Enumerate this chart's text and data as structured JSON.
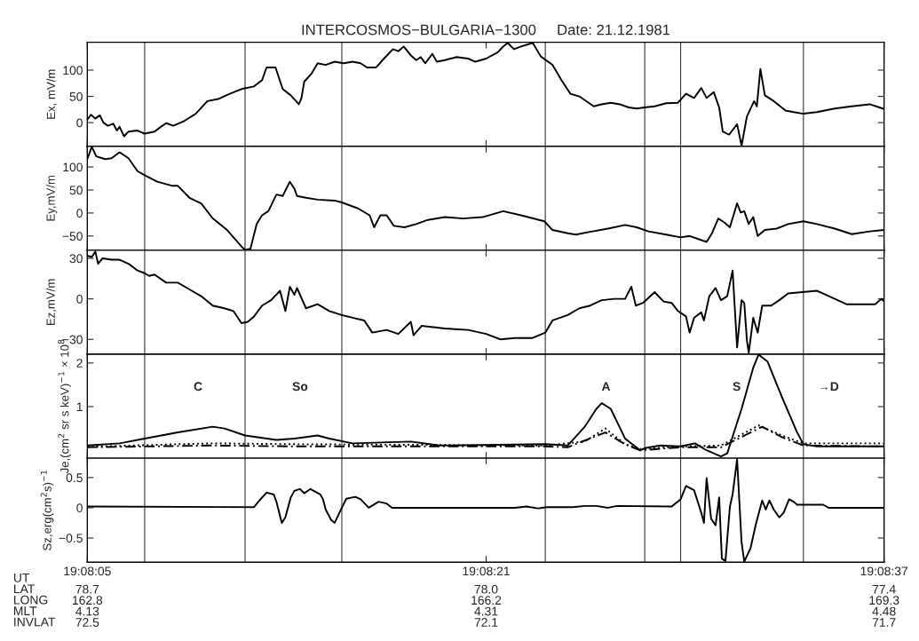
{
  "chart_data": [
    {
      "type": "line",
      "title": "INTERCOSMOS−BULGARIA−1300     Date: 21.12.1981",
      "ylabel": "Ex, mV/m",
      "xlim": [
        19.13472,
        19.14361
      ],
      "xticks": [
        19.13472,
        19.13917,
        19.14361
      ],
      "ylim": [
        -45,
        153
      ],
      "yticks": [
        0,
        50,
        100
      ],
      "tick_labels": "y",
      "ref_lines": [
        {
          "axis": "x",
          "value": 19.13536,
          "color": "#333333"
        },
        {
          "axis": "x",
          "value": 19.13648,
          "color": "#333333"
        },
        {
          "axis": "x",
          "value": 19.13756,
          "color": "#333333"
        },
        {
          "axis": "x",
          "value": 19.13983,
          "color": "#333333"
        },
        {
          "axis": "x",
          "value": 19.14094,
          "color": "#333333"
        },
        {
          "axis": "x",
          "value": 19.14134,
          "color": "#333333"
        },
        {
          "axis": "x",
          "value": 19.14271,
          "color": "#333333"
        }
      ],
      "series": [
        {
          "color": "#000000",
          "x": [
            19.13472,
            19.13476,
            19.13481,
            19.13486,
            19.1349,
            19.13495,
            19.13501,
            19.13505,
            19.13508,
            19.13513,
            19.13518,
            19.13528,
            19.13536,
            19.13547,
            19.13554,
            19.1356,
            19.13568,
            19.13579,
            19.13593,
            19.13606,
            19.13618,
            19.13631,
            19.13644,
            19.13658,
            19.13667,
            19.13672,
            19.13682,
            19.1369,
            19.13699,
            19.13708,
            19.13711,
            19.13714,
            19.13722,
            19.13729,
            19.13738,
            19.13748,
            19.13758,
            19.13768,
            19.13777,
            19.13784,
            19.13794,
            19.13803,
            19.13813,
            19.13819,
            19.13825,
            19.13833,
            19.13839,
            19.13844,
            19.13849,
            19.13857,
            19.13862,
            19.13871,
            19.13884,
            19.13897,
            19.13905,
            19.13917,
            19.1393,
            19.13936,
            19.13941,
            19.13948,
            19.13956,
            19.13969,
            19.13978,
            19.13991,
            19.14001,
            19.14011,
            19.14021,
            19.14027,
            19.14037,
            19.14046,
            19.14056,
            19.14066,
            19.14076,
            19.14085,
            19.14094,
            19.14105,
            19.14118,
            19.14131,
            19.1414,
            19.14149,
            19.14157,
            19.14163,
            19.14171,
            19.14177,
            19.14181,
            19.14188,
            19.14197,
            19.14202,
            19.14208,
            19.14216,
            19.14219,
            19.14223,
            19.14228,
            19.14238,
            19.14251,
            19.1426,
            19.14271,
            19.14286,
            19.14306,
            19.14325,
            19.14345,
            19.14361
          ],
          "values": [
            6,
            15,
            8,
            14,
            0,
            -6,
            -2,
            -15,
            -8,
            -26,
            -17,
            -15,
            -21,
            -17,
            -8,
            -1,
            -6,
            2,
            17,
            41,
            45,
            55,
            64,
            69,
            81,
            105,
            105,
            64,
            52,
            35,
            47,
            78,
            93,
            113,
            110,
            116,
            113,
            116,
            113,
            105,
            105,
            122,
            140,
            136,
            145,
            128,
            119,
            125,
            113,
            131,
            116,
            119,
            125,
            122,
            116,
            122,
            134,
            145,
            152,
            140,
            145,
            152,
            126,
            110,
            81,
            55,
            50,
            43,
            31,
            35,
            38,
            35,
            29,
            27,
            29,
            31,
            37,
            38,
            55,
            47,
            66,
            47,
            58,
            29,
            -17,
            -23,
            -3,
            -44,
            12,
            41,
            31,
            102,
            52,
            41,
            23,
            20,
            17,
            20,
            27,
            31,
            35,
            26
          ]
        }
      ]
    },
    {
      "type": "line",
      "ylabel": "Ey,mV/m",
      "xlim": [
        19.13472,
        19.14361
      ],
      "xticks": [
        19.13472,
        19.13917,
        19.14361
      ],
      "ylim": [
        -81,
        145
      ],
      "yticks": [
        {
          "value": -50,
          "label": "−50"
        },
        0,
        50,
        100
      ],
      "tick_labels": "y",
      "ref_lines": [
        {
          "axis": "x",
          "value": 19.13536,
          "color": "#333333"
        },
        {
          "axis": "x",
          "value": 19.13648,
          "color": "#333333"
        },
        {
          "axis": "x",
          "value": 19.13756,
          "color": "#333333"
        },
        {
          "axis": "x",
          "value": 19.13983,
          "color": "#333333"
        },
        {
          "axis": "x",
          "value": 19.14094,
          "color": "#333333"
        },
        {
          "axis": "x",
          "value": 19.14134,
          "color": "#333333"
        },
        {
          "axis": "x",
          "value": 19.14271,
          "color": "#333333"
        }
      ],
      "series": [
        {
          "color": "#000000",
          "x": [
            19.13472,
            19.13477,
            19.13482,
            19.13492,
            19.13499,
            19.13508,
            19.13518,
            19.13528,
            19.13536,
            19.1355,
            19.13567,
            19.13573,
            19.13586,
            19.13599,
            19.13612,
            19.13628,
            19.13644,
            19.13648,
            19.13654,
            19.13661,
            19.13667,
            19.13674,
            19.13683,
            19.1369,
            19.13698,
            19.13703,
            19.13706,
            19.13716,
            19.13729,
            19.13748,
            19.13756,
            19.13774,
            19.13787,
            19.13792,
            19.13799,
            19.13806,
            19.13814,
            19.13826,
            19.13839,
            19.13852,
            19.13871,
            19.13891,
            19.13913,
            19.13936,
            19.13956,
            19.13982,
            19.13991,
            19.14008,
            19.14017,
            19.14033,
            19.14053,
            19.14072,
            19.14085,
            19.14098,
            19.14118,
            19.14134,
            19.14144,
            19.14163,
            19.14169,
            19.14176,
            19.14183,
            19.14189,
            19.14197,
            19.14201,
            19.14205,
            19.1421,
            19.14215,
            19.1422,
            19.14228,
            19.14241,
            19.14254,
            19.14271,
            19.14286,
            19.14306,
            19.14325,
            19.14345,
            19.14361
          ],
          "values": [
            117,
            144,
            123,
            117,
            119,
            132,
            119,
            91,
            82,
            68,
            59,
            59,
            33,
            21,
            -12,
            -37,
            -73,
            -80,
            -78,
            -24,
            -5,
            4,
            40,
            37,
            68,
            53,
            37,
            33,
            29,
            27,
            23,
            10,
            -5,
            -31,
            -5,
            -5,
            -28,
            -31,
            -24,
            -15,
            -9,
            -12,
            -9,
            4,
            -5,
            -18,
            -37,
            -44,
            -47,
            -41,
            -34,
            -26,
            -31,
            -40,
            -47,
            -53,
            -50,
            -63,
            -44,
            -12,
            -21,
            -31,
            21,
            1,
            4,
            -24,
            -9,
            -50,
            -37,
            -34,
            -24,
            -18,
            -24,
            -34,
            -46,
            -40,
            -37
          ]
        }
      ]
    },
    {
      "type": "line",
      "ylabel": "Ez,mV/m",
      "xlim": [
        19.13472,
        19.14361
      ],
      "xticks": [
        19.13472,
        19.13917,
        19.14361
      ],
      "ylim": [
        -41,
        36
      ],
      "yticks": [
        {
          "value": -30,
          "label": "−30"
        },
        0,
        30
      ],
      "tick_labels": "y",
      "ref_lines": [
        {
          "axis": "x",
          "value": 19.13536,
          "color": "#333333"
        },
        {
          "axis": "x",
          "value": 19.13648,
          "color": "#333333"
        },
        {
          "axis": "x",
          "value": 19.13756,
          "color": "#333333"
        },
        {
          "axis": "x",
          "value": 19.13983,
          "color": "#333333"
        },
        {
          "axis": "x",
          "value": 19.14094,
          "color": "#333333"
        },
        {
          "axis": "x",
          "value": 19.14134,
          "color": "#333333"
        },
        {
          "axis": "x",
          "value": 19.14271,
          "color": "#333333"
        }
      ],
      "series": [
        {
          "color": "#000000",
          "x": [
            19.13472,
            19.13477,
            19.13481,
            19.13484,
            19.13489,
            19.13499,
            19.13508,
            19.13518,
            19.13528,
            19.13536,
            19.13541,
            19.13547,
            19.1356,
            19.13573,
            19.13586,
            19.13599,
            19.13612,
            19.13625,
            19.13635,
            19.13644,
            19.13651,
            19.13658,
            19.13667,
            19.13677,
            19.13687,
            19.13693,
            19.13698,
            19.13703,
            19.13706,
            19.13716,
            19.13729,
            19.13742,
            19.13756,
            19.13768,
            19.13781,
            19.1379,
            19.13806,
            19.13819,
            19.13833,
            19.13836,
            19.13845,
            19.13871,
            19.13897,
            19.13917,
            19.13933,
            19.13949,
            19.13969,
            19.13983,
            19.13991,
            19.14008,
            19.14021,
            19.14033,
            19.14046,
            19.1406,
            19.14072,
            19.14079,
            19.14084,
            19.14092,
            19.14105,
            19.14115,
            19.14124,
            19.14131,
            19.1414,
            19.14144,
            19.14149,
            19.14157,
            19.1416,
            19.14166,
            19.14173,
            19.14179,
            19.14186,
            19.14192,
            19.14197,
            19.14202,
            19.14205,
            19.14208,
            19.1421,
            19.14215,
            19.1422,
            19.14225,
            19.14235,
            19.14244,
            19.14254,
            19.14286,
            19.14293,
            19.14319,
            19.14351,
            19.14358,
            19.14361
          ],
          "values": [
            32,
            31,
            35,
            26,
            30,
            29,
            29,
            26,
            21,
            19,
            17,
            18,
            12,
            12,
            7,
            2,
            -5,
            -7,
            -9,
            -18,
            -17,
            -13,
            -5,
            -1,
            6,
            -9,
            9,
            3,
            8,
            -7,
            -4,
            -9,
            -12,
            -14,
            -16,
            -25,
            -23,
            -26,
            -17,
            -27,
            -20,
            -22,
            -23,
            -26,
            -30,
            -29,
            -29,
            -25,
            -16,
            -12,
            -7,
            -5,
            -1,
            0,
            0,
            9,
            -5,
            -3,
            5,
            -2,
            -3,
            -9,
            -13,
            -25,
            -14,
            -10,
            -16,
            2,
            8,
            -1,
            2,
            21,
            -36,
            -1,
            -3,
            -31,
            -40,
            -14,
            -25,
            -5,
            -5,
            -1,
            4,
            6,
            4,
            -4,
            -4,
            0,
            -2
          ]
        }
      ]
    },
    {
      "type": "line",
      "ylabel": "Je,(cm$^{2}$ sr s keV)$^{−1}$ × 10$^{8}$",
      "xlim": [
        19.13472,
        19.14361
      ],
      "xticks": [
        19.13472,
        19.13917,
        19.14361
      ],
      "ylim": [
        -0.18,
        2.2
      ],
      "yticks": [
        1,
        2
      ],
      "tick_labels": "y",
      "ref_lines": [
        {
          "axis": "x",
          "value": 19.13536,
          "color": "#333333"
        },
        {
          "axis": "x",
          "value": 19.13648,
          "color": "#333333"
        },
        {
          "axis": "x",
          "value": 19.13756,
          "color": "#333333"
        },
        {
          "axis": "x",
          "value": 19.13983,
          "color": "#333333"
        },
        {
          "axis": "x",
          "value": 19.14094,
          "color": "#333333"
        },
        {
          "axis": "x",
          "value": 19.14134,
          "color": "#333333"
        },
        {
          "axis": "x",
          "value": 19.14271,
          "color": "#333333"
        }
      ],
      "annotations": [
        "C",
        "So",
        "A",
        "S",
        "→D"
      ],
      "series": [
        {
          "color": "#000000",
          "line_style": "solid",
          "x": [
            19.13472,
            19.13508,
            19.13536,
            19.13573,
            19.13612,
            19.13625,
            19.13648,
            19.13683,
            19.13703,
            19.13729,
            19.13742,
            19.13768,
            19.13833,
            19.13865,
            19.13983,
            19.14008,
            19.14027,
            19.1404,
            19.14046,
            19.14056,
            19.14072,
            19.14089,
            19.14094,
            19.14111,
            19.14134,
            19.1415,
            19.14163,
            19.14179,
            19.14186,
            19.14202,
            19.14215,
            19.14221,
            19.14231,
            19.14247,
            19.14264,
            19.14271,
            19.14286,
            19.14361
          ],
          "values": [
            0.11,
            0.16,
            0.27,
            0.41,
            0.54,
            0.5,
            0.34,
            0.24,
            0.27,
            0.34,
            0.27,
            0.16,
            0.2,
            0.11,
            0.14,
            0.11,
            0.54,
            0.95,
            1.08,
            0.95,
            0.27,
            0,
            0.05,
            0.11,
            0.09,
            0.16,
            0,
            -0.14,
            -0.07,
            0.95,
            1.89,
            2.19,
            2.03,
            1.22,
            0.41,
            0.14,
            0.09,
            0.09
          ]
        },
        {
          "color": "#000000",
          "line_style": "dotted",
          "x": [
            19.13472,
            19.13573,
            19.13612,
            19.13703,
            19.13983,
            19.14027,
            19.1405,
            19.14072,
            19.14089,
            19.14134,
            19.14179,
            19.14221,
            19.14247,
            19.14271,
            19.14361
          ],
          "values": [
            0.08,
            0.14,
            0.16,
            0.14,
            0.11,
            0.2,
            0.5,
            0.14,
            0.03,
            0.09,
            0.11,
            0.57,
            0.34,
            0.16,
            0.16
          ]
        },
        {
          "color": "#000000",
          "line_style": "dashed",
          "x": [
            19.13472,
            19.13612,
            19.13703,
            19.13983,
            19.14008,
            19.1405,
            19.14072,
            19.14089,
            19.14134,
            19.14179,
            19.14225,
            19.14247,
            19.14271,
            19.14361
          ],
          "values": [
            0.07,
            0.11,
            0.09,
            0.09,
            0.07,
            0.41,
            0.14,
            0,
            0.07,
            0.07,
            0.54,
            0.3,
            0.11,
            0.09
          ]
        }
      ]
    },
    {
      "type": "line",
      "ylabel": "Sz,erg(cm$^{2}$s)$^{−1}$",
      "xlim": [
        19.13472,
        19.14361
      ],
      "xticks": [
        {
          "value": 19.13472,
          "label": "19:08:05"
        },
        {
          "value": 19.13917,
          "label": "19:08:21"
        },
        {
          "value": 19.14361,
          "label": "19:08:37"
        }
      ],
      "ylim": [
        -0.9,
        0.82
      ],
      "yticks": [
        {
          "value": -0.5,
          "label": "−0.5"
        },
        0,
        0.5
      ],
      "annotations": [
        "UT\nLAT\nLONG\nMLT\nINVLAT",
        "78.7\n162.8\n4.13\n72.5",
        "78.0\n166.2\n4.31\n72.1",
        "77.4\n169.3\n4.48\n71.7"
      ],
      "ref_lines": [
        {
          "axis": "x",
          "value": 19.13536,
          "color": "#333333"
        },
        {
          "axis": "x",
          "value": 19.13648,
          "color": "#333333"
        },
        {
          "axis": "x",
          "value": 19.13756,
          "color": "#333333"
        },
        {
          "axis": "x",
          "value": 19.13983,
          "color": "#333333"
        },
        {
          "axis": "x",
          "value": 19.14094,
          "color": "#333333"
        },
        {
          "axis": "x",
          "value": 19.14134,
          "color": "#333333"
        },
        {
          "axis": "x",
          "value": 19.14271,
          "color": "#333333"
        }
      ],
      "series": [
        {
          "color": "#000000",
          "x": [
            19.13472,
            19.13658,
            19.13664,
            19.13672,
            19.1368,
            19.13683,
            19.13689,
            19.13693,
            19.13699,
            19.13703,
            19.13709,
            19.13714,
            19.13721,
            19.13732,
            19.13735,
            19.13738,
            19.13744,
            19.13748,
            19.13755,
            19.13761,
            19.13771,
            19.13777,
            19.13786,
            19.13797,
            19.13806,
            19.13812,
            19.13949,
            19.13962,
            19.13975,
            19.13985,
            19.14014,
            19.14027,
            19.1404,
            19.14053,
            19.14063,
            19.14124,
            19.14134,
            19.1414,
            19.14149,
            19.14157,
            19.1416,
            19.14163,
            19.14168,
            19.14173,
            19.14177,
            19.1418,
            19.14184,
            19.14189,
            19.14192,
            19.14197,
            19.14202,
            19.14205,
            19.14212,
            19.14218,
            19.14225,
            19.14229,
            19.14233,
            19.14238,
            19.14244,
            19.14249,
            19.14255,
            19.1426,
            19.14264,
            19.14293,
            19.14299,
            19.14361
          ],
          "values": [
            0.02,
            0.01,
            0.12,
            0.25,
            0.22,
            0.1,
            -0.25,
            -0.16,
            0.17,
            0.28,
            0.31,
            0.24,
            0.31,
            0.22,
            0.14,
            -0.03,
            -0.2,
            -0.25,
            -0.03,
            0.15,
            0.18,
            0.14,
            0,
            0.1,
            0.07,
            0,
            0,
            0.02,
            -0.01,
            0.01,
            0.01,
            0.03,
            0.03,
            0,
            0.03,
            0.02,
            0.14,
            0.36,
            0.29,
            -0.08,
            -0.25,
            0.49,
            -0.18,
            -0.29,
            0.17,
            -0.84,
            -0.88,
            0.02,
            0.22,
            0.8,
            -0.57,
            -0.89,
            -0.67,
            -0.27,
            0.12,
            -0.03,
            0.12,
            -0.03,
            -0.16,
            -0.08,
            0.14,
            0.1,
            0.05,
            0.05,
            0,
            0
          ]
        }
      ]
    }
  ]
}
